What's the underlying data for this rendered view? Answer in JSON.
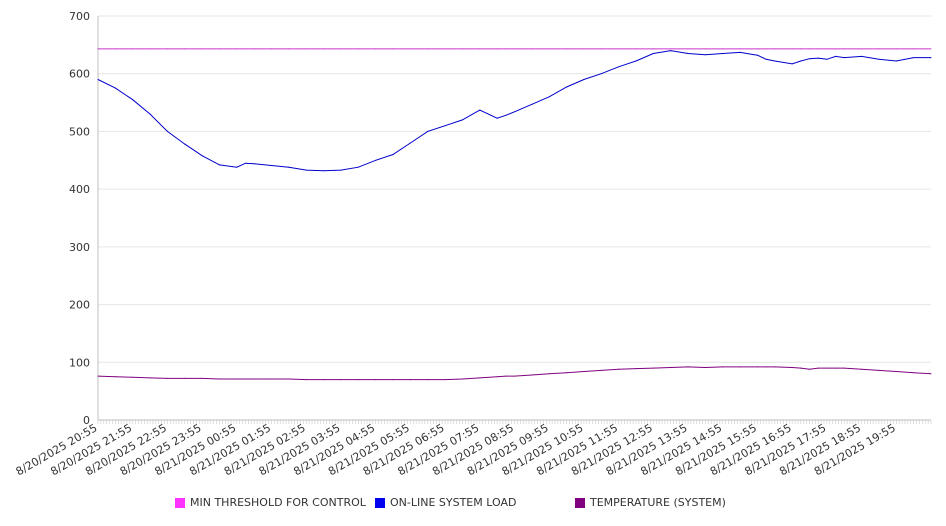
{
  "chart_data": {
    "type": "line",
    "ylim": [
      0,
      700
    ],
    "yticks": [
      0,
      100,
      200,
      300,
      400,
      500,
      600,
      700
    ],
    "grid": true,
    "legend_position": "bottom",
    "x_tick_labels": [
      "8/20/2025 20:55",
      "8/20/2025 21:55",
      "8/20/2025 22:55",
      "8/20/2025 23:55",
      "8/21/2025 00:55",
      "8/21/2025 01:55",
      "8/21/2025 02:55",
      "8/21/2025 03:55",
      "8/21/2025 04:55",
      "8/21/2025 05:55",
      "8/21/2025 06:55",
      "8/21/2025 07:55",
      "8/21/2025 08:55",
      "8/21/2025 09:55",
      "8/21/2025 10:55",
      "8/21/2025 11:55",
      "8/21/2025 12:55",
      "8/21/2025 13:55",
      "8/21/2025 14:55",
      "8/21/2025 15:55",
      "8/21/2025 16:55",
      "8/21/2025 17:55",
      "8/21/2025 18:55",
      "8/21/2025 19:55"
    ],
    "x": [
      "8/20/2025 20:55",
      "8/20/2025 21:25",
      "8/20/2025 21:55",
      "8/20/2025 22:25",
      "8/20/2025 22:55",
      "8/20/2025 23:25",
      "8/20/2025 23:55",
      "8/21/2025 00:25",
      "8/21/2025 00:55",
      "8/21/2025 01:10",
      "8/21/2025 01:25",
      "8/21/2025 01:55",
      "8/21/2025 02:25",
      "8/21/2025 02:55",
      "8/21/2025 03:25",
      "8/21/2025 03:55",
      "8/21/2025 04:25",
      "8/21/2025 04:55",
      "8/21/2025 05:25",
      "8/21/2025 05:55",
      "8/21/2025 06:25",
      "8/21/2025 06:55",
      "8/21/2025 07:25",
      "8/21/2025 07:55",
      "8/21/2025 08:25",
      "8/21/2025 08:40",
      "8/21/2025 08:55",
      "8/21/2025 09:25",
      "8/21/2025 09:55",
      "8/21/2025 10:25",
      "8/21/2025 10:55",
      "8/21/2025 11:25",
      "8/21/2025 11:55",
      "8/21/2025 12:25",
      "8/21/2025 12:55",
      "8/21/2025 13:25",
      "8/21/2025 13:55",
      "8/21/2025 14:25",
      "8/21/2025 14:55",
      "8/21/2025 15:25",
      "8/21/2025 15:55",
      "8/21/2025 16:10",
      "8/21/2025 16:25",
      "8/21/2025 16:55",
      "8/21/2025 17:10",
      "8/21/2025 17:25",
      "8/21/2025 17:40",
      "8/21/2025 17:55",
      "8/21/2025 18:10",
      "8/21/2025 18:25",
      "8/21/2025 18:55",
      "8/21/2025 19:25",
      "8/21/2025 19:55",
      "8/21/2025 20:25",
      "8/21/2025 20:55"
    ],
    "series": [
      {
        "name": "MIN THRESHOLD FOR CONTROL",
        "color": "#cc33cc",
        "values": [
          643,
          643,
          643,
          643,
          643,
          643,
          643,
          643,
          643,
          643,
          643,
          643,
          643,
          643,
          643,
          643,
          643,
          643,
          643,
          643,
          643,
          643,
          643,
          643,
          643,
          643,
          643,
          643,
          643,
          643,
          643,
          643,
          643,
          643,
          643,
          643,
          643,
          643,
          643,
          643,
          643,
          643,
          643,
          643,
          643,
          643,
          643,
          643,
          643,
          643,
          643,
          643,
          643,
          643,
          643
        ]
      },
      {
        "name": "ON-LINE SYSTEM LOAD",
        "color": "#0000cc",
        "values": [
          590,
          575,
          555,
          530,
          500,
          478,
          458,
          442,
          438,
          445,
          444,
          441,
          438,
          433,
          432,
          433,
          438,
          450,
          460,
          480,
          500,
          510,
          520,
          537,
          523,
          528,
          534,
          547,
          560,
          577,
          590,
          600,
          612,
          622,
          635,
          640,
          635,
          633,
          635,
          637,
          632,
          625,
          622,
          617,
          622,
          626,
          627,
          625,
          630,
          628,
          630,
          625,
          622,
          628,
          628
        ]
      },
      {
        "name": "TEMPERATURE (SYSTEM)",
        "color": "#800080",
        "values": [
          76,
          75,
          74,
          73,
          72,
          72,
          72,
          71,
          71,
          71,
          71,
          71,
          71,
          70,
          70,
          70,
          70,
          70,
          70,
          70,
          70,
          70,
          71,
          73,
          75,
          76,
          76,
          78,
          80,
          82,
          84,
          86,
          88,
          89,
          90,
          91,
          92,
          91,
          92,
          92,
          92,
          92,
          92,
          91,
          90,
          88,
          90,
          90,
          90,
          90,
          88,
          86,
          84,
          82,
          80
        ]
      }
    ]
  }
}
